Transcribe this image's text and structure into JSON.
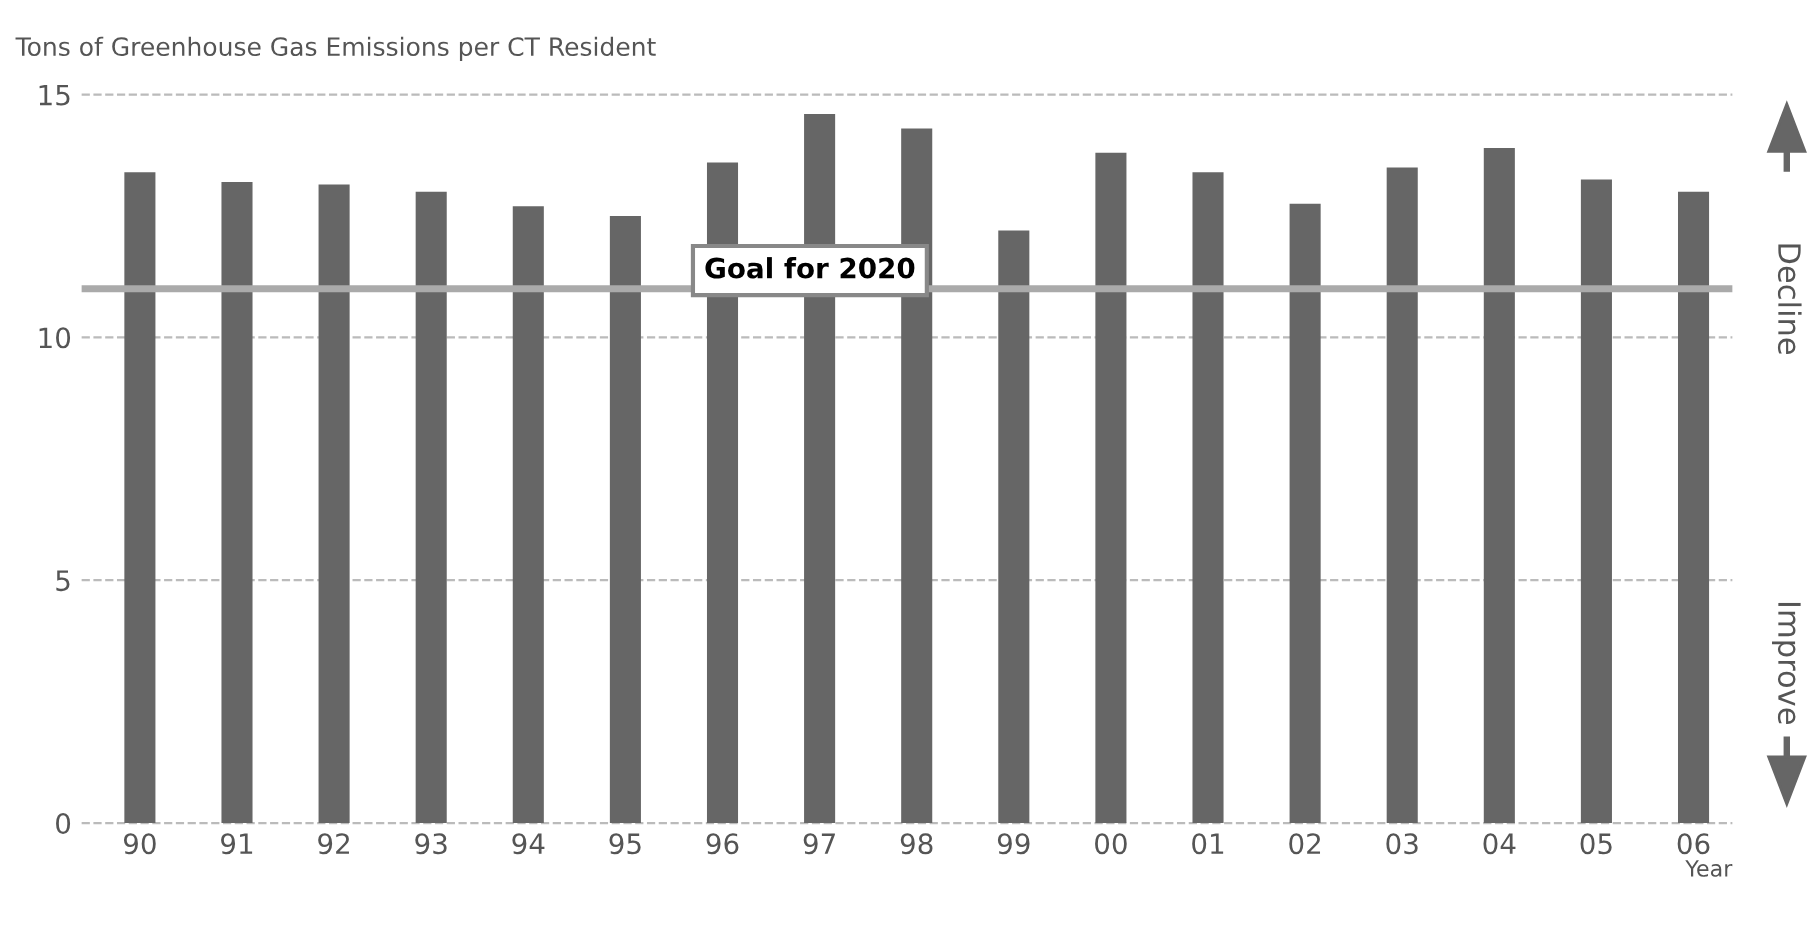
{
  "chart_data": {
    "type": "bar",
    "title": "Tons of Greenhouse Gas Emissions per CT Resident",
    "xlabel": "Year",
    "categories": [
      "90",
      "91",
      "92",
      "93",
      "94",
      "95",
      "96",
      "97",
      "98",
      "99",
      "00",
      "01",
      "02",
      "03",
      "04",
      "05",
      "06"
    ],
    "values": [
      13.4,
      13.2,
      13.15,
      13.0,
      12.7,
      12.5,
      13.6,
      14.6,
      14.3,
      12.2,
      13.8,
      13.4,
      12.75,
      13.5,
      13.9,
      13.25,
      13.0
    ],
    "color": "#666666",
    "ylim": [
      0,
      15
    ],
    "yticks": [
      0,
      5,
      10,
      15
    ],
    "grid": "y",
    "ref_lines": [
      {
        "axis": "y",
        "value": 11,
        "label": "Goal for 2020",
        "color": "#aaaaaa"
      }
    ],
    "annotations": [
      "Decline",
      "Improve"
    ]
  }
}
